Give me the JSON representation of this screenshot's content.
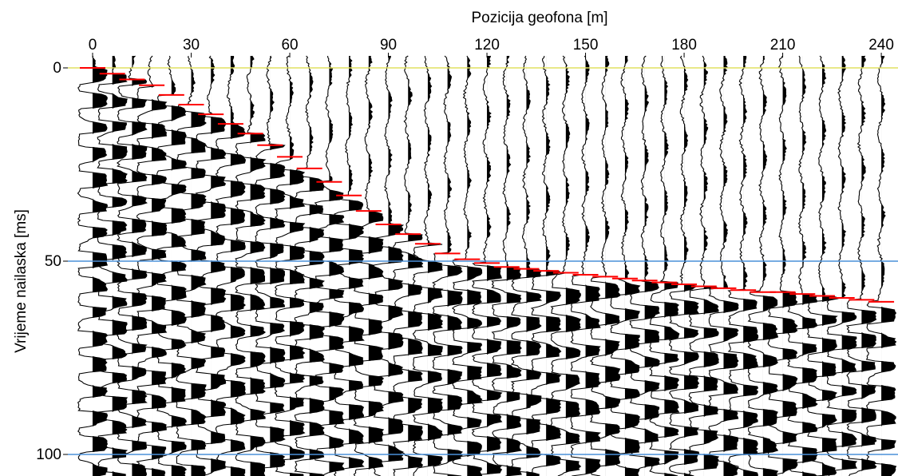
{
  "chart_data": {
    "type": "seismogram",
    "title": "Pozicija geofona [m]",
    "xlabel": "Pozicija geofona [m]",
    "ylabel": "Vrijeme nailaska [ms]",
    "xlim": [
      0,
      245
    ],
    "ylim": [
      0,
      105
    ],
    "x_ticks": [
      0,
      30,
      60,
      90,
      120,
      150,
      180,
      210,
      240
    ],
    "y_ticks": [
      0,
      50,
      100
    ],
    "traces": {
      "count": 41,
      "spacing_m": 6,
      "first_position_m": 0,
      "fill": "positive-black"
    },
    "reference_lines": [
      {
        "time_ms": 0,
        "color": "#e0e060"
      },
      {
        "time_ms": 50,
        "color": "#4a90d9"
      },
      {
        "time_ms": 100,
        "color": "#4a90d9"
      }
    ],
    "first_breaks": {
      "color": "#ff0000",
      "picks": [
        {
          "x": 0,
          "t": 0
        },
        {
          "x": 6,
          "t": 1.5
        },
        {
          "x": 12,
          "t": 3
        },
        {
          "x": 18,
          "t": 4.5
        },
        {
          "x": 24,
          "t": 7
        },
        {
          "x": 30,
          "t": 9.5
        },
        {
          "x": 36,
          "t": 12
        },
        {
          "x": 42,
          "t": 14.5
        },
        {
          "x": 48,
          "t": 17
        },
        {
          "x": 54,
          "t": 20
        },
        {
          "x": 60,
          "t": 23
        },
        {
          "x": 66,
          "t": 26
        },
        {
          "x": 72,
          "t": 29.5
        },
        {
          "x": 78,
          "t": 33
        },
        {
          "x": 84,
          "t": 37
        },
        {
          "x": 90,
          "t": 40.5
        },
        {
          "x": 96,
          "t": 43
        },
        {
          "x": 102,
          "t": 45.5
        },
        {
          "x": 108,
          "t": 48
        },
        {
          "x": 114,
          "t": 49.5
        },
        {
          "x": 120,
          "t": 50.5
        },
        {
          "x": 126,
          "t": 51.5
        },
        {
          "x": 132,
          "t": 52
        },
        {
          "x": 138,
          "t": 52.5
        },
        {
          "x": 144,
          "t": 53
        },
        {
          "x": 150,
          "t": 53.5
        },
        {
          "x": 156,
          "t": 54
        },
        {
          "x": 162,
          "t": 54.5
        },
        {
          "x": 168,
          "t": 55
        },
        {
          "x": 174,
          "t": 55.5
        },
        {
          "x": 180,
          "t": 56
        },
        {
          "x": 186,
          "t": 56.5
        },
        {
          "x": 192,
          "t": 57
        },
        {
          "x": 198,
          "t": 57.5
        },
        {
          "x": 204,
          "t": 58
        },
        {
          "x": 210,
          "t": 58
        },
        {
          "x": 216,
          "t": 58.5
        },
        {
          "x": 222,
          "t": 59
        },
        {
          "x": 228,
          "t": 59.5
        },
        {
          "x": 234,
          "t": 60
        },
        {
          "x": 240,
          "t": 60.5
        }
      ]
    }
  }
}
